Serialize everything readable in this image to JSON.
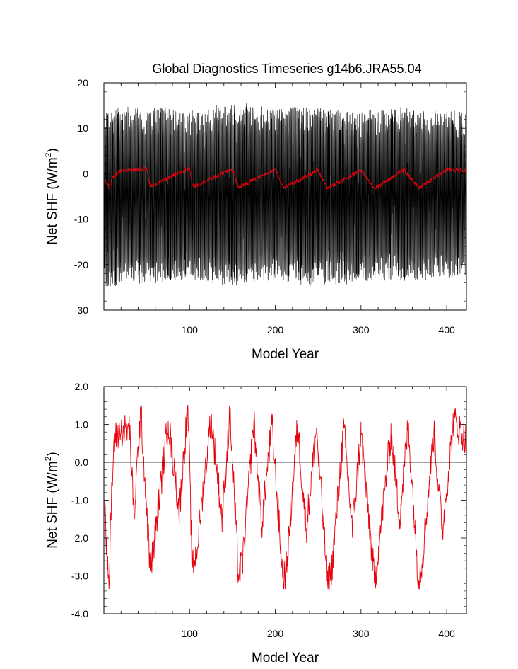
{
  "title": "Global Diagnostics Timeseries g14b6.JRA55.04",
  "chart_data": [
    {
      "type": "line",
      "xlabel": "Model Year",
      "ylabel": "Net SHF (W/m",
      "ylabel_sup": "2",
      "ylabel_close": ")",
      "xlim": [
        0,
        423
      ],
      "ylim": [
        -30,
        20
      ],
      "xticks": [
        100,
        200,
        300,
        400
      ],
      "yticks": [
        -30,
        -20,
        -10,
        0,
        10,
        20
      ],
      "ytick_labels": [
        "-30",
        "-20",
        "-10",
        "0",
        "10",
        "20"
      ],
      "zero_line": false,
      "series": [
        {
          "style": "monthly",
          "color": "#000000",
          "description": "monthly values oscillating roughly between -20 and 10, extremes near -25 and 15",
          "upper_envelope": [
            [
              0,
              11
            ],
            [
              30,
              12
            ],
            [
              60,
              12
            ],
            [
              100,
              11
            ],
            [
              150,
              13
            ],
            [
              200,
              12
            ],
            [
              250,
              12
            ],
            [
              300,
              11
            ],
            [
              350,
              12
            ],
            [
              423,
              11
            ]
          ],
          "lower_envelope": [
            [
              0,
              -23
            ],
            [
              30,
              -21
            ],
            [
              60,
              -22
            ],
            [
              100,
              -21
            ],
            [
              150,
              -22
            ],
            [
              200,
              -21
            ],
            [
              250,
              -22
            ],
            [
              300,
              -21
            ],
            [
              350,
              -21
            ],
            [
              423,
              -20
            ]
          ]
        },
        {
          "style": "annual",
          "color": "#e8000b",
          "anchor_points": [
            [
              1,
              -1.5
            ],
            [
              4,
              -2.0
            ],
            [
              6,
              -3.3
            ],
            [
              10,
              -1.0
            ],
            [
              20,
              0.6
            ],
            [
              50,
              1.1
            ],
            [
              54,
              -2.8
            ],
            [
              100,
              1.2
            ],
            [
              104,
              -2.8
            ],
            [
              150,
              1.0
            ],
            [
              157,
              -3.0
            ],
            [
              200,
              1.0
            ],
            [
              210,
              -3.1
            ],
            [
              250,
              0.8
            ],
            [
              261,
              -3.2
            ],
            [
              300,
              0.7
            ],
            [
              316,
              -3.2
            ],
            [
              350,
              0.9
            ],
            [
              367,
              -3.1
            ],
            [
              400,
              0.9
            ],
            [
              423,
              0.6
            ]
          ]
        }
      ]
    },
    {
      "type": "line",
      "xlabel": "Model Year",
      "ylabel": "Net SHF (W/m",
      "ylabel_sup": "2",
      "ylabel_close": ")",
      "xlim": [
        0,
        423
      ],
      "ylim": [
        -4.0,
        2.0
      ],
      "xticks": [
        100,
        200,
        300,
        400
      ],
      "yticks": [
        -4.0,
        -3.0,
        -2.0,
        -1.0,
        0.0,
        1.0,
        2.0
      ],
      "ytick_labels": [
        "-4.0",
        "-3.0",
        "-2.0",
        "-1.0",
        "0.0",
        "1.0",
        "2.0"
      ],
      "zero_line": true,
      "series": [
        {
          "style": "annual",
          "color": "#e8000b",
          "anchor_points": [
            [
              1,
              -1.0
            ],
            [
              3,
              -2.0
            ],
            [
              6,
              -3.3
            ],
            [
              9,
              -0.9
            ],
            [
              12,
              0.6
            ],
            [
              20,
              0.8
            ],
            [
              30,
              0.9
            ],
            [
              35,
              -1.5
            ],
            [
              43,
              1.4
            ],
            [
              54,
              -2.8
            ],
            [
              58,
              -2.3
            ],
            [
              75,
              1.1
            ],
            [
              88,
              -1.3
            ],
            [
              98,
              1.5
            ],
            [
              103,
              -2.8
            ],
            [
              108,
              -2.4
            ],
            [
              125,
              1.2
            ],
            [
              138,
              -1.5
            ],
            [
              147,
              1.3
            ],
            [
              157,
              -3.0
            ],
            [
              162,
              -2.6
            ],
            [
              175,
              1.1
            ],
            [
              184,
              -1.7
            ],
            [
              196,
              1.0
            ],
            [
              209,
              -3.1
            ],
            [
              213,
              -2.8
            ],
            [
              226,
              1.0
            ],
            [
              236,
              -1.8
            ],
            [
              248,
              0.9
            ],
            [
              261,
              -3.2
            ],
            [
              266,
              -2.8
            ],
            [
              280,
              0.9
            ],
            [
              290,
              -1.8
            ],
            [
              300,
              0.8
            ],
            [
              316,
              -3.2
            ],
            [
              319,
              -2.6
            ],
            [
              335,
              0.8
            ],
            [
              345,
              -1.5
            ],
            [
              355,
              1.0
            ],
            [
              367,
              -3.1
            ],
            [
              371,
              -2.7
            ],
            [
              385,
              0.8
            ],
            [
              395,
              -1.8
            ],
            [
              408,
              1.1
            ],
            [
              423,
              0.6
            ]
          ]
        }
      ]
    }
  ]
}
